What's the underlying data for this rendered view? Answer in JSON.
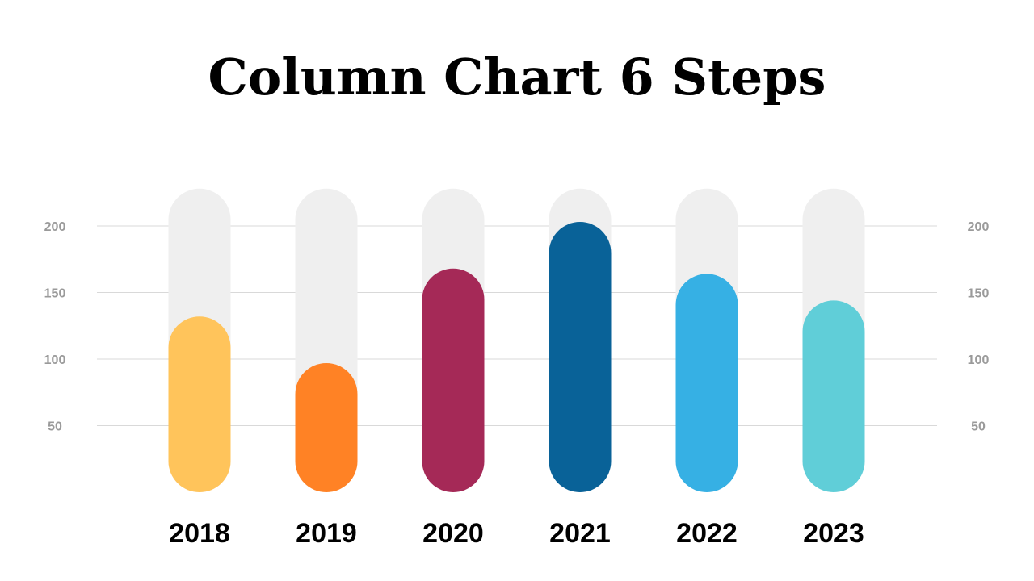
{
  "chart_data": {
    "type": "bar",
    "title": "Column Chart 6 Steps",
    "xlabel": "",
    "ylabel": "",
    "categories": [
      "2018",
      "2019",
      "2020",
      "2021",
      "2022",
      "2023"
    ],
    "values": [
      132,
      97,
      168,
      203,
      164,
      144
    ],
    "track_max": 228,
    "yticks": [
      50,
      100,
      150,
      200
    ],
    "ylim": [
      0,
      228
    ],
    "grid": true,
    "axis_labels_both_sides": true,
    "colors": [
      "#FFC45B",
      "#FF8225",
      "#A52957",
      "#096298",
      "#36B0E4",
      "#60CED8"
    ],
    "track_color": "#EFEFEF",
    "grid_color": "#D9D9D9"
  }
}
